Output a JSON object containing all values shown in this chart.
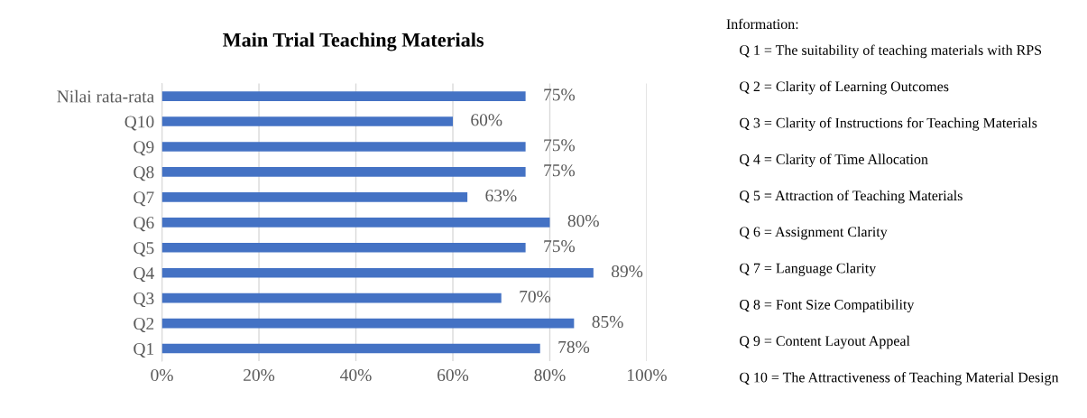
{
  "chart_data": {
    "type": "bar",
    "orientation": "horizontal",
    "title": "Main Trial Teaching Materials",
    "categories": [
      "Nilai rata-rata",
      "Q10",
      "Q9",
      "Q8",
      "Q7",
      "Q6",
      "Q5",
      "Q4",
      "Q3",
      "Q2",
      "Q1"
    ],
    "values": [
      75,
      60,
      75,
      75,
      63,
      80,
      75,
      89,
      70,
      85,
      78
    ],
    "value_labels": [
      "75%",
      "60%",
      "75%",
      "75%",
      "63%",
      "80%",
      "75%",
      "89%",
      "70%",
      "85%",
      "78%"
    ],
    "color": "#4472c4",
    "xlim": [
      0,
      100
    ],
    "xticks": [
      {
        "value": 0,
        "label": "0%"
      },
      {
        "value": 20,
        "label": "20%"
      },
      {
        "value": 40,
        "label": "40%"
      },
      {
        "value": 60,
        "label": "60%"
      },
      {
        "value": 80,
        "label": "80%"
      },
      {
        "value": 100,
        "label": "100%"
      }
    ],
    "grid": "x",
    "annotations": [
      "Information:",
      "Q 1 = The suitability of teaching materials with RPS",
      "Q 2 = Clarity of Learning Outcomes",
      "Q 3 = Clarity of Instructions for Teaching Materials",
      "Q 4 = Clarity of Time Allocation",
      "Q 5 = Attraction of Teaching Materials",
      "Q 6 = Assignment Clarity",
      "Q 7 = Language Clarity",
      "Q 8 = Font Size Compatibility",
      "Q 9 = Content Layout Appeal",
      "Q 10 = The Attractiveness of Teaching Material Design"
    ]
  }
}
